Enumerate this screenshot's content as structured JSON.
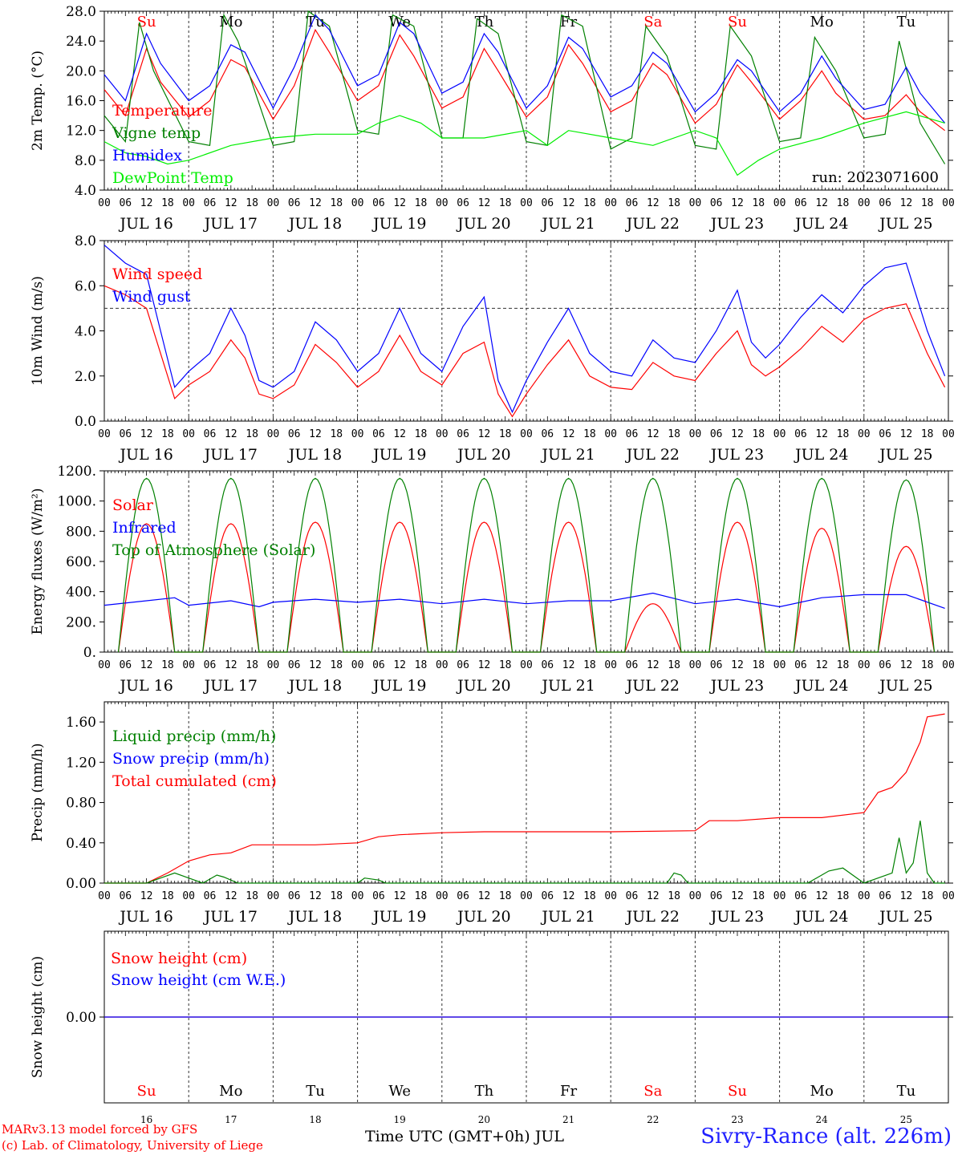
{
  "chart_data": [
    {
      "type": "line",
      "ylabel": "2m Temp. (°C)",
      "ylim": [
        4.0,
        28.0
      ],
      "yticks": [
        "4.0",
        "8.0",
        "12.0",
        "16.0",
        "20.0",
        "24.0",
        "28.0"
      ],
      "run_label": "run: 2023071600",
      "legend": [
        "Temperature",
        "Vigne temp",
        "Humidex",
        "DewPoint Temp"
      ],
      "legend_colors": [
        "#ff0000",
        "#008000",
        "#0000ff",
        "#00ee00"
      ],
      "series": [
        {
          "name": "Temperature",
          "color": "#ff0000",
          "x_hours": [
            0,
            6,
            12,
            16,
            24,
            30,
            36,
            40,
            48,
            54,
            60,
            64,
            72,
            78,
            84,
            88,
            96,
            102,
            108,
            112,
            120,
            126,
            132,
            136,
            144,
            150,
            156,
            160,
            168,
            174,
            180,
            184,
            192,
            198,
            204,
            208,
            216,
            222,
            228,
            232,
            239
          ],
          "y": [
            17.5,
            14.0,
            23.0,
            18.5,
            13.8,
            16.0,
            21.5,
            20.5,
            13.5,
            18.0,
            25.5,
            22.5,
            16.0,
            18.0,
            24.8,
            22.0,
            15.0,
            16.5,
            23.0,
            20.0,
            13.8,
            16.5,
            23.5,
            21.0,
            14.5,
            16.0,
            21.0,
            19.5,
            13.0,
            15.5,
            20.8,
            18.5,
            13.5,
            16.0,
            20.0,
            17.0,
            13.5,
            14.0,
            16.8,
            14.5,
            12.0
          ]
        },
        {
          "name": "Vigne temp",
          "color": "#008000",
          "x_hours": [
            0,
            6,
            10,
            14,
            24,
            30,
            34,
            38,
            48,
            54,
            58,
            64,
            72,
            78,
            82,
            88,
            96,
            102,
            106,
            112,
            120,
            126,
            130,
            136,
            144,
            150,
            154,
            160,
            168,
            174,
            178,
            184,
            192,
            198,
            202,
            208,
            216,
            222,
            226,
            232,
            239
          ],
          "y": [
            14.0,
            10.5,
            26.5,
            20.0,
            10.5,
            10.0,
            27.5,
            24.0,
            10.0,
            10.5,
            28.0,
            26.0,
            12.0,
            11.5,
            27.5,
            26.0,
            11.0,
            11.0,
            27.0,
            25.0,
            10.5,
            10.0,
            27.5,
            26.0,
            9.5,
            11.0,
            26.0,
            22.0,
            10.0,
            9.5,
            26.0,
            22.0,
            10.5,
            11.0,
            24.5,
            20.0,
            11.0,
            11.5,
            24.0,
            13.0,
            7.5
          ]
        },
        {
          "name": "Humidex",
          "color": "#0000ff",
          "x_hours": [
            0,
            6,
            12,
            16,
            24,
            30,
            36,
            40,
            48,
            54,
            60,
            64,
            72,
            78,
            84,
            88,
            96,
            102,
            108,
            112,
            120,
            126,
            132,
            136,
            144,
            150,
            156,
            160,
            168,
            174,
            180,
            184,
            192,
            198,
            204,
            208,
            216,
            222,
            228,
            232,
            239
          ],
          "y": [
            19.5,
            16.0,
            25.0,
            21.0,
            16.0,
            18.0,
            23.5,
            22.5,
            15.0,
            20.5,
            27.5,
            25.5,
            18.0,
            19.5,
            26.5,
            25.0,
            17.0,
            18.5,
            25.0,
            22.5,
            15.0,
            18.0,
            24.5,
            23.0,
            16.5,
            18.0,
            22.5,
            21.0,
            14.5,
            17.0,
            21.5,
            20.0,
            14.5,
            17.0,
            22.0,
            19.0,
            14.8,
            15.5,
            20.5,
            17.0,
            13.0
          ]
        },
        {
          "name": "DewPoint Temp",
          "color": "#00ee00",
          "x_hours": [
            0,
            6,
            12,
            18,
            24,
            36,
            48,
            60,
            72,
            78,
            84,
            90,
            96,
            108,
            120,
            126,
            132,
            144,
            156,
            168,
            174,
            180,
            186,
            192,
            204,
            216,
            228,
            239
          ],
          "y": [
            10.5,
            9.0,
            8.5,
            7.5,
            8.0,
            10.0,
            11.0,
            11.5,
            11.5,
            13.0,
            14.0,
            13.0,
            11.0,
            11.0,
            12.0,
            10.0,
            12.0,
            11.0,
            10.0,
            12.0,
            11.0,
            6.0,
            8.0,
            9.5,
            11.0,
            13.0,
            14.5,
            13.0
          ]
        }
      ]
    },
    {
      "type": "line",
      "ylabel": "10m Wind (m/s)",
      "ylim": [
        0.0,
        8.0
      ],
      "yticks": [
        "0.0",
        "2.0",
        "4.0",
        "6.0",
        "8.0"
      ],
      "reference_line": 5.0,
      "legend": [
        "Wind speed",
        "Wind gust"
      ],
      "legend_colors": [
        "#ff0000",
        "#0000ff"
      ],
      "series": [
        {
          "name": "Wind speed",
          "color": "#ff0000",
          "x_hours": [
            0,
            6,
            12,
            16,
            20,
            24,
            30,
            36,
            40,
            44,
            48,
            54,
            60,
            66,
            72,
            78,
            84,
            90,
            96,
            102,
            108,
            112,
            116,
            120,
            126,
            132,
            138,
            144,
            150,
            156,
            162,
            168,
            174,
            180,
            184,
            188,
            192,
            198,
            204,
            210,
            216,
            222,
            228,
            234,
            239
          ],
          "y": [
            6.0,
            5.6,
            5.0,
            3.0,
            1.0,
            1.6,
            2.2,
            3.6,
            2.8,
            1.2,
            1.0,
            1.6,
            3.4,
            2.6,
            1.5,
            2.2,
            3.8,
            2.2,
            1.6,
            3.0,
            3.5,
            1.2,
            0.2,
            1.2,
            2.5,
            3.6,
            2.0,
            1.5,
            1.4,
            2.6,
            2.0,
            1.8,
            3.0,
            4.0,
            2.5,
            2.0,
            2.4,
            3.2,
            4.2,
            3.5,
            4.5,
            5.0,
            5.2,
            3.0,
            1.5
          ]
        },
        {
          "name": "Wind gust",
          "color": "#0000ff",
          "x_hours": [
            0,
            6,
            12,
            16,
            20,
            24,
            30,
            36,
            40,
            44,
            48,
            54,
            60,
            66,
            72,
            78,
            84,
            90,
            96,
            102,
            108,
            112,
            116,
            120,
            126,
            132,
            138,
            144,
            150,
            156,
            162,
            168,
            174,
            180,
            184,
            188,
            192,
            198,
            204,
            210,
            216,
            222,
            228,
            234,
            239
          ],
          "y": [
            7.8,
            7.0,
            6.5,
            4.0,
            1.5,
            2.2,
            3.0,
            5.0,
            3.8,
            1.8,
            1.5,
            2.2,
            4.4,
            3.6,
            2.2,
            3.0,
            5.0,
            3.0,
            2.2,
            4.2,
            5.5,
            1.8,
            0.4,
            1.8,
            3.5,
            5.0,
            3.0,
            2.2,
            2.0,
            3.6,
            2.8,
            2.6,
            4.0,
            5.8,
            3.5,
            2.8,
            3.4,
            4.6,
            5.6,
            4.8,
            6.0,
            6.8,
            7.0,
            4.0,
            2.0
          ]
        }
      ]
    },
    {
      "type": "line",
      "ylabel": "Energy fluxes (W/m²)",
      "ylim": [
        0,
        1200
      ],
      "yticks": [
        "0.",
        "200.",
        "400.",
        "600.",
        "800.",
        "1000.",
        "1200."
      ],
      "legend": [
        "Solar",
        "Infrared",
        "Top of Atmosphere (Solar)"
      ],
      "legend_colors": [
        "#ff0000",
        "#0000ff",
        "#008000"
      ],
      "series": [
        {
          "name": "Solar",
          "color": "#ff0000",
          "daily_peaks": [
            850,
            850,
            860,
            860,
            860,
            860,
            320,
            860,
            820,
            700
          ],
          "day_start_hour": 4,
          "day_end_hour": 20
        },
        {
          "name": "Infrared",
          "color": "#0000ff",
          "x_hours": [
            0,
            12,
            20,
            24,
            36,
            44,
            48,
            60,
            72,
            84,
            96,
            108,
            120,
            132,
            144,
            156,
            168,
            180,
            192,
            204,
            216,
            228,
            239
          ],
          "y": [
            310,
            340,
            360,
            310,
            340,
            300,
            330,
            350,
            330,
            350,
            320,
            350,
            320,
            340,
            340,
            390,
            320,
            350,
            300,
            360,
            380,
            380,
            290
          ]
        },
        {
          "name": "Top of Atmosphere (Solar)",
          "color": "#008000",
          "daily_peaks": [
            1150,
            1150,
            1150,
            1150,
            1150,
            1150,
            1150,
            1150,
            1150,
            1140
          ],
          "day_start_hour": 4,
          "day_end_hour": 20
        }
      ]
    },
    {
      "type": "line",
      "ylabel": "Precip (mm/h)",
      "ylim": [
        0.0,
        1.8
      ],
      "yticks": [
        "0.00",
        "0.40",
        "0.80",
        "1.20",
        "1.60"
      ],
      "legend": [
        "Liquid precip (mm/h)",
        "Snow precip (mm/h)",
        "Total cumulated (cm)"
      ],
      "legend_colors": [
        "#008000",
        "#0000ff",
        "#ff0000"
      ],
      "series": [
        {
          "name": "Total cumulated (cm)",
          "color": "#ff0000",
          "x_hours": [
            0,
            12,
            18,
            24,
            30,
            36,
            42,
            48,
            60,
            72,
            78,
            84,
            96,
            108,
            120,
            144,
            168,
            172,
            180,
            192,
            204,
            216,
            220,
            224,
            228,
            232,
            234,
            239
          ],
          "y": [
            0.0,
            0.0,
            0.1,
            0.22,
            0.28,
            0.3,
            0.38,
            0.38,
            0.38,
            0.4,
            0.46,
            0.48,
            0.5,
            0.51,
            0.51,
            0.51,
            0.52,
            0.62,
            0.62,
            0.65,
            0.65,
            0.7,
            0.9,
            0.95,
            1.1,
            1.4,
            1.65,
            1.68
          ]
        },
        {
          "name": "Liquid precip (mm/h)",
          "color": "#008000",
          "x_hours": [
            0,
            12,
            16,
            20,
            24,
            28,
            32,
            34,
            38,
            42,
            72,
            74,
            78,
            80,
            150,
            160,
            162,
            164,
            166,
            168,
            200,
            206,
            210,
            214,
            216,
            220,
            224,
            226,
            228,
            230,
            232,
            234,
            236,
            239
          ],
          "y": [
            0.0,
            0.0,
            0.05,
            0.1,
            0.05,
            0.0,
            0.08,
            0.06,
            0.0,
            0.0,
            0.0,
            0.05,
            0.03,
            0.0,
            0.0,
            0.0,
            0.1,
            0.08,
            0.0,
            0.0,
            0.0,
            0.12,
            0.15,
            0.05,
            0.0,
            0.05,
            0.1,
            0.45,
            0.1,
            0.2,
            0.62,
            0.1,
            0.0,
            0.0
          ]
        }
      ]
    },
    {
      "type": "line",
      "ylabel": "Snow height (cm)",
      "yticks": [
        "0.00"
      ],
      "legend": [
        "Snow height (cm)",
        "Snow height (cm W.E.)"
      ],
      "legend_colors": [
        "#ff0000",
        "#0000ff"
      ],
      "series": [
        {
          "name": "Snow height (cm)",
          "color": "#ff0000",
          "x_hours": [
            0,
            240
          ],
          "y": [
            0.0,
            0.0
          ]
        },
        {
          "name": "Snow height (cm W.E.)",
          "color": "#0000ff",
          "x_hours": [
            0,
            240
          ],
          "y": [
            0.0,
            0.0
          ]
        }
      ]
    }
  ],
  "x_axis": {
    "hour_labels": [
      "00",
      "06",
      "12",
      "18"
    ],
    "final_label": "00",
    "date_labels": [
      "JUL 16",
      "JUL 17",
      "JUL 18",
      "JUL 19",
      "JUL 20",
      "JUL 21",
      "JUL 22",
      "JUL 23",
      "JUL 24",
      "JUL 25"
    ],
    "day_numbers": [
      "16",
      "17",
      "18",
      "19",
      "20",
      "21",
      "22",
      "23",
      "24",
      "25"
    ],
    "weekdays": [
      "Su",
      "Mo",
      "Tu",
      "We",
      "Th",
      "Fr",
      "Sa",
      "Su",
      "Mo",
      "Tu"
    ],
    "weekend_flags": [
      true,
      false,
      false,
      false,
      false,
      false,
      true,
      true,
      false,
      false
    ],
    "title": "Time UTC (GMT+0h) JUL"
  },
  "footer": {
    "credit_line1": "MARv3.13 model forced by GFS",
    "credit_line2": "(c) Lab. of Climatology, University of Liege",
    "location": "Sivry-Rance (alt. 226m)"
  }
}
